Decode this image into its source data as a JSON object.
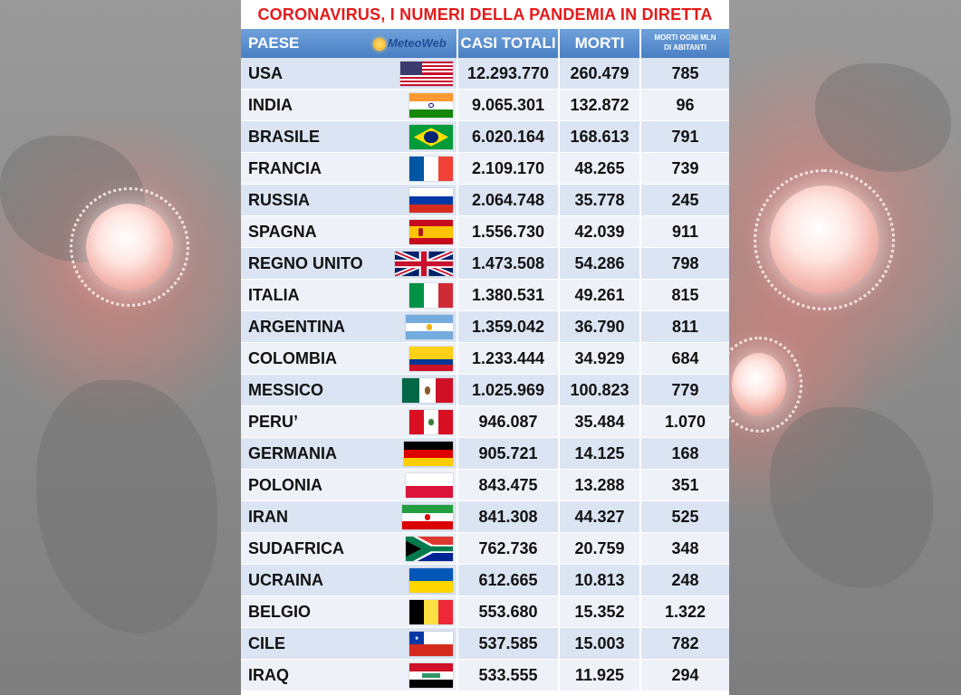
{
  "title": "CORONAVIRUS, I NUMERI DELLA PANDEMIA IN DIRETTA",
  "logo_text": "MeteoWeb",
  "headers": {
    "country": "PAESE",
    "cases": "CASI TOTALI",
    "deaths": "MORTI",
    "per_mln_line1": "MORTI OGNI MLN",
    "per_mln_line2": "DI ABITANTI"
  },
  "rows": [
    {
      "country": "USA",
      "flag": "usa-flag",
      "cases": "12.293.770",
      "deaths": "260.479",
      "per_mln": "785"
    },
    {
      "country": "INDIA",
      "flag": "india-flag",
      "cases": "9.065.301",
      "deaths": "132.872",
      "per_mln": "96"
    },
    {
      "country": "BRASILE",
      "flag": "brazil-flag",
      "cases": "6.020.164",
      "deaths": "168.613",
      "per_mln": "791"
    },
    {
      "country": "FRANCIA",
      "flag": "france-flag",
      "cases": "2.109.170",
      "deaths": "48.265",
      "per_mln": "739"
    },
    {
      "country": "RUSSIA",
      "flag": "russia-flag",
      "cases": "2.064.748",
      "deaths": "35.778",
      "per_mln": "245"
    },
    {
      "country": "SPAGNA",
      "flag": "spain-flag",
      "cases": "1.556.730",
      "deaths": "42.039",
      "per_mln": "911"
    },
    {
      "country": "REGNO UNITO",
      "flag": "uk-flag",
      "cases": "1.473.508",
      "deaths": "54.286",
      "per_mln": "798"
    },
    {
      "country": "ITALIA",
      "flag": "italy-flag",
      "cases": "1.380.531",
      "deaths": "49.261",
      "per_mln": "815"
    },
    {
      "country": "ARGENTINA",
      "flag": "argentina-flag",
      "cases": "1.359.042",
      "deaths": "36.790",
      "per_mln": "811"
    },
    {
      "country": "COLOMBIA",
      "flag": "colombia-flag",
      "cases": "1.233.444",
      "deaths": "34.929",
      "per_mln": "684"
    },
    {
      "country": "MESSICO",
      "flag": "mexico-flag",
      "cases": "1.025.969",
      "deaths": "100.823",
      "per_mln": "779"
    },
    {
      "country": "PERU’",
      "flag": "peru-flag",
      "cases": "946.087",
      "deaths": "35.484",
      "per_mln": "1.070"
    },
    {
      "country": "GERMANIA",
      "flag": "germany-flag",
      "cases": "905.721",
      "deaths": "14.125",
      "per_mln": "168"
    },
    {
      "country": "POLONIA",
      "flag": "poland-flag",
      "cases": "843.475",
      "deaths": "13.288",
      "per_mln": "351"
    },
    {
      "country": "IRAN",
      "flag": "iran-flag",
      "cases": "841.308",
      "deaths": "44.327",
      "per_mln": "525"
    },
    {
      "country": "SUDAFRICA",
      "flag": "south-africa-flag",
      "cases": "762.736",
      "deaths": "20.759",
      "per_mln": "348"
    },
    {
      "country": "UCRAINA",
      "flag": "ukraine-flag",
      "cases": "612.665",
      "deaths": "10.813",
      "per_mln": "248"
    },
    {
      "country": "BELGIO",
      "flag": "belgium-flag",
      "cases": "553.680",
      "deaths": "15.352",
      "per_mln": "1.322"
    },
    {
      "country": "CILE",
      "flag": "chile-flag",
      "cases": "537.585",
      "deaths": "15.003",
      "per_mln": "782"
    },
    {
      "country": "IRAQ",
      "flag": "iraq-flag",
      "cases": "533.555",
      "deaths": "11.925",
      "per_mln": "294"
    }
  ]
}
